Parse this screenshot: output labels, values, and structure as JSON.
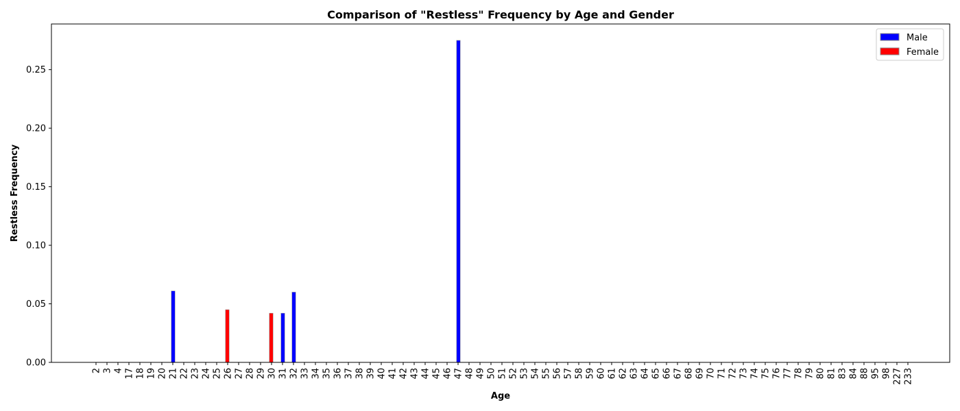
{
  "chart_data": {
    "type": "bar",
    "title": "Comparison of \"Restless\" Frequency by Age and Gender",
    "xlabel": "Age",
    "ylabel": "Restless Frequency",
    "categories": [
      "2",
      "3",
      "4",
      "17",
      "18",
      "19",
      "20",
      "21",
      "22",
      "23",
      "24",
      "25",
      "26",
      "27",
      "28",
      "29",
      "30",
      "31",
      "32",
      "33",
      "34",
      "35",
      "36",
      "37",
      "38",
      "39",
      "40",
      "41",
      "42",
      "43",
      "44",
      "45",
      "46",
      "47",
      "48",
      "49",
      "50",
      "51",
      "52",
      "53",
      "54",
      "55",
      "56",
      "57",
      "58",
      "59",
      "60",
      "61",
      "62",
      "63",
      "64",
      "65",
      "66",
      "67",
      "68",
      "69",
      "70",
      "71",
      "72",
      "73",
      "74",
      "75",
      "76",
      "77",
      "78",
      "79",
      "80",
      "81",
      "83",
      "84",
      "88",
      "95",
      "98",
      "227",
      "233"
    ],
    "series": [
      {
        "name": "Male",
        "color": "#0000ff",
        "values": [
          0,
          0,
          0,
          0,
          0,
          0,
          0,
          0.061,
          0,
          0,
          0,
          0,
          0,
          0,
          0,
          0,
          0,
          0.042,
          0.06,
          0,
          0,
          0,
          0,
          0,
          0,
          0,
          0,
          0,
          0,
          0,
          0,
          0,
          0,
          0.275,
          0,
          0,
          0,
          0,
          0,
          0,
          0,
          0,
          0,
          0,
          0,
          0,
          0,
          0,
          0,
          0,
          0,
          0,
          0,
          0,
          0,
          0,
          0,
          0,
          0,
          0,
          0,
          0,
          0,
          0,
          0,
          0,
          0,
          0,
          0,
          0,
          0,
          0,
          0,
          0,
          0
        ]
      },
      {
        "name": "Female",
        "color": "#ff0000",
        "values": [
          0,
          0,
          0,
          0,
          0,
          0,
          0,
          0,
          0,
          0,
          0,
          0,
          0.045,
          0,
          0,
          0,
          0.042,
          0,
          0,
          0,
          0,
          0,
          0,
          0,
          0,
          0,
          0,
          0,
          0,
          0,
          0,
          0,
          0,
          0,
          0,
          0,
          0,
          0,
          0,
          0,
          0,
          0,
          0,
          0,
          0,
          0,
          0,
          0,
          0,
          0,
          0,
          0,
          0,
          0,
          0,
          0,
          0,
          0,
          0,
          0,
          0,
          0,
          0,
          0,
          0,
          0,
          0,
          0,
          0,
          0,
          0,
          0,
          0,
          0,
          0
        ]
      }
    ],
    "yticks": [
      "0.00",
      "0.05",
      "0.10",
      "0.15",
      "0.20",
      "0.25"
    ],
    "ylim": [
      0,
      0.289
    ],
    "legend": "top-right",
    "grid": false
  }
}
